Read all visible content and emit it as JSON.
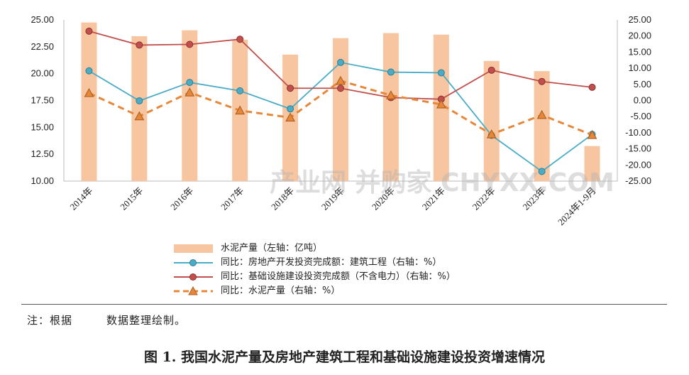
{
  "chart_data": {
    "type": "bar+line",
    "categories": [
      "2014年",
      "2015年",
      "2016年",
      "2017年",
      "2018年",
      "2019年",
      "2020年",
      "2021年",
      "2022年",
      "2023年",
      "2024年1-9月"
    ],
    "left_axis": {
      "min": 10.0,
      "max": 25.0,
      "step": 2.5,
      "ticks": [
        "10.00",
        "12.50",
        "15.00",
        "17.50",
        "20.00",
        "22.50",
        "25.00"
      ]
    },
    "right_axis": {
      "min": -25.0,
      "max": 25.0,
      "step": 5,
      "ticks": [
        "-25.00",
        "-20.00",
        "-15.00",
        "-10.00",
        "-5.00",
        "0.00",
        "5.00",
        "10.00",
        "15.00",
        "20.00",
        "25.00"
      ]
    },
    "series": [
      {
        "name": "水泥产量（左轴：亿吨）",
        "type": "bar",
        "axis": "left",
        "color": "#f7c59f",
        "values": [
          24.76,
          23.48,
          24.03,
          23.16,
          21.77,
          23.3,
          23.77,
          23.63,
          21.18,
          20.23,
          13.26
        ]
      },
      {
        "name": "同比：房地产开发投资完成额：建筑工程（右轴：%）",
        "type": "line",
        "axis": "right",
        "color": "#4bacc6",
        "marker": "circle",
        "values": [
          9.2,
          -0.1,
          5.6,
          3.0,
          -2.6,
          11.8,
          8.8,
          8.6,
          -10.8,
          -22.0,
          -10.5
        ]
      },
      {
        "name": "同比：基础设施建设投资完成额（不含电力）（右轴：%）",
        "type": "line",
        "axis": "right",
        "color": "#c0504d",
        "marker": "circle",
        "values": [
          21.5,
          17.2,
          17.4,
          19.0,
          3.8,
          3.8,
          0.9,
          0.4,
          9.4,
          5.9,
          4.1
        ]
      },
      {
        "name": "同比：水泥产量（右轴：%）",
        "type": "line",
        "axis": "right",
        "color": "#e6873a",
        "marker": "triangle",
        "dashed": true,
        "values": [
          2.3,
          -4.9,
          2.5,
          -3.1,
          -5.3,
          6.1,
          1.6,
          -1.2,
          -10.5,
          -4.5,
          -10.7
        ]
      }
    ]
  },
  "note": "注：根据　　　数据整理绘制。",
  "caption": "图 1. 我国水泥产量及房地产建筑工程和基础设施建设投资增速情况",
  "watermark": "产业网 并购家 CHYXX.COM"
}
